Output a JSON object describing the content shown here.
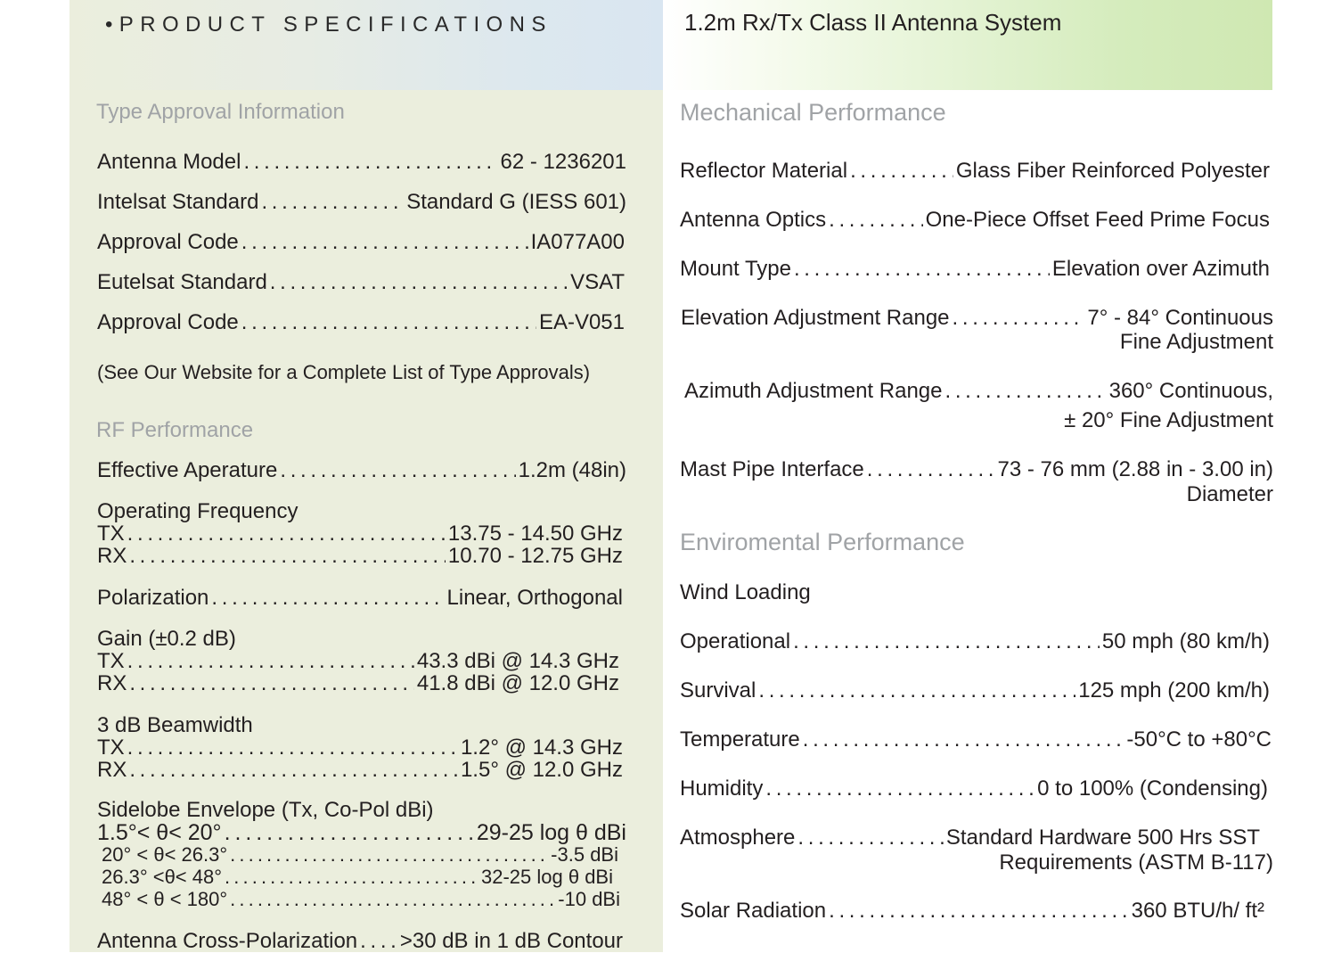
{
  "header": {
    "left_title": "•PRODUCT SPECIFICATIONS",
    "right_title": "1.2m Rx/Tx Class II Antenna System"
  },
  "type_approval": {
    "heading": "Type Approval Information",
    "rows": [
      {
        "label": "Antenna Model",
        "value": "62 - 1236201"
      },
      {
        "label": "Intelsat Standard",
        "value": "Standard G (IESS 601)"
      },
      {
        "label": "Approval Code",
        "value": "IA077A00"
      },
      {
        "label": "Eutelsat Standard",
        "value": "VSAT"
      },
      {
        "label": "Approval Code",
        "value": "EA-V051"
      }
    ],
    "note": "(See Our Website for a Complete List of Type Approvals)"
  },
  "rf_performance": {
    "heading": "RF Performance",
    "effective_aperture": {
      "label": "Effective Aperature",
      "value": "1.2m (48in)"
    },
    "operating_frequency": {
      "label": "Operating Frequency",
      "tx": {
        "label": "TX",
        "value": "13.75 - 14.50 GHz"
      },
      "rx": {
        "label": "RX",
        "value": "10.70 - 12.75 GHz"
      }
    },
    "polarization": {
      "label": "Polarization",
      "value": "Linear, Orthogonal"
    },
    "gain": {
      "label": "Gain  (±0.2 dB)",
      "tx": {
        "label": "TX",
        "value": "43.3 dBi @ 14.3 GHz"
      },
      "rx": {
        "label": "RX",
        "value": "41.8 dBi @ 12.0 GHz"
      }
    },
    "beamwidth": {
      "label": "3 dB Beamwidth",
      "tx": {
        "label": "TX",
        "value": "1.2° @ 14.3 GHz"
      },
      "rx": {
        "label": "RX",
        "value": "1.5° @ 12.0 GHz"
      }
    },
    "sidelobe": {
      "label": "Sidelobe Envelope (Tx, Co-Pol dBi)",
      "rows": [
        {
          "label": "1.5°< θ< 20°",
          "value": "29-25 log θ dBi"
        },
        {
          "label": "20° < θ< 26.3°",
          "value": "-3.5 dBi"
        },
        {
          "label": "26.3° <θ< 48°",
          "value": "32-25 log θ dBi"
        },
        {
          "label": "48° < θ < 180°",
          "value": "-10 dBi"
        }
      ]
    },
    "cross_pol": {
      "label": "Antenna Cross-Polarization",
      "value": ">30 dB in 1 dB Contour"
    }
  },
  "mechanical": {
    "heading": "Mechanical Performance",
    "reflector": {
      "label": "Reflector Material",
      "value": "Glass Fiber Reinforced Polyester"
    },
    "optics": {
      "label": "Antenna Optics",
      "value": "One-Piece Offset Feed Prime Focus"
    },
    "mount": {
      "label": "Mount Type",
      "value": "Elevation over Azimuth"
    },
    "elevation": {
      "label": "Elevation Adjustment Range",
      "value": "7° - 84° Continuous",
      "value2": "Fine Adjustment"
    },
    "azimuth": {
      "label": "Azimuth Adjustment Range",
      "value": "360° Continuous,",
      "value2": "± 20° Fine Adjustment"
    },
    "mast": {
      "label": "Mast  Pipe Interface",
      "value": "73 - 76 mm (2.88 in - 3.00 in)",
      "value2": "Diameter"
    }
  },
  "environmental": {
    "heading": "Enviromental Performance",
    "wind": "Wind Loading",
    "operational": {
      "label": "Operational",
      "value": "50 mph (80 km/h)"
    },
    "survival": {
      "label": "Survival",
      "value": "125 mph (200 km/h)"
    },
    "temperature": {
      "label": "Temperature",
      "value": "-50°C to +80°C"
    },
    "humidity": {
      "label": "Humidity",
      "value": "0 to 100% (Condensing)"
    },
    "atmosphere": {
      "label": "Atmosphere",
      "value": "Standard Hardware 500 Hrs SST",
      "value2": "Requirements (ASTM B-117)"
    },
    "solar": {
      "label": "Solar Radiation",
      "value": "360 BTU/h/ ft²"
    }
  }
}
